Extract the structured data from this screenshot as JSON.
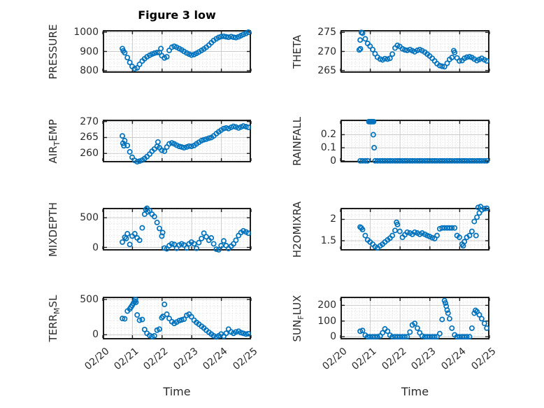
{
  "figure": {
    "title": "Figure 3 low",
    "xlabel": "Time",
    "marker_color": "#0072BD",
    "axis_color": "#1c1c1c",
    "major_grid_color": "#cbcbcb",
    "minor_grid_color": "#d9d9d9",
    "text_color": "#2b2b2b"
  },
  "chart_data": {
    "type": "scatter",
    "layout": "4x2-subplots",
    "title": "Figure 3 low",
    "xlabel": "Time",
    "marker": "open-circle",
    "marker_color": "#0072BD",
    "grid": "major-solid+minor-dotted",
    "x_range_days": [
      0,
      5
    ],
    "x_tick_days": [
      0,
      1,
      2,
      3,
      4,
      5
    ],
    "x_tick_labels": [
      "02/20",
      "02/21",
      "02/22",
      "02/23",
      "02/24",
      "02/25"
    ],
    "x_minor_per_day": 8,
    "t_days": [
      0.66,
      0.74,
      0.83,
      0.91,
      0.99,
      1.08,
      1.16,
      1.24,
      1.33,
      1.41,
      1.49,
      1.58,
      1.66,
      1.74,
      1.83,
      1.91,
      1.99,
      2.08,
      2.16,
      2.24,
      2.33,
      2.41,
      2.49,
      2.58,
      2.66,
      2.74,
      2.83,
      2.91,
      2.99,
      3.08,
      3.16,
      3.24,
      3.33,
      3.41,
      3.49,
      3.58,
      3.66,
      3.74,
      3.83,
      3.91,
      3.99,
      4.08,
      4.16,
      4.24,
      4.33,
      4.41,
      4.49,
      4.58,
      4.66,
      4.74,
      4.83,
      4.91
    ],
    "subplots": [
      {
        "id": "PRESSURE",
        "col": 0,
        "row": 0,
        "ylabel_parts": [
          [
            "PRESSURE",
            false
          ]
        ],
        "ylim": [
          789,
          1011
        ],
        "yticks": [
          800,
          900,
          1000
        ],
        "ytick_labels": [
          "800",
          "900",
          "1000"
        ],
        "y_minor_step": 20,
        "values": [
          915,
          893,
          868,
          843,
          822,
          810,
          815,
          833,
          850,
          862,
          872,
          880,
          886,
          891,
          894,
          895,
          878,
          866,
          872,
          905,
          922,
          927,
          922,
          915,
          908,
          900,
          892,
          886,
          881,
          884,
          890,
          897,
          905,
          913,
          922,
          933,
          945,
          957,
          966,
          973,
          977,
          979,
          976,
          974,
          977,
          974,
          972,
          976,
          982,
          988,
          994,
          1000
        ],
        "extra_points": [
          [
            0.69,
            903
          ],
          [
            1.96,
            915
          ]
        ]
      },
      {
        "id": "THETA",
        "col": 1,
        "row": 0,
        "ylabel_parts": [
          [
            "THETA",
            false
          ]
        ],
        "ylim": [
          264.4,
          275.6
        ],
        "yticks": [
          265,
          270,
          275
        ],
        "ytick_labels": [
          "265",
          "270",
          "275"
        ],
        "y_minor_step": 1,
        "values": [
          273.0,
          274.8,
          273.3,
          272.1,
          271.4,
          270.5,
          269.4,
          268.5,
          268.0,
          267.8,
          268.1,
          268.0,
          268.2,
          269.3,
          270.9,
          271.6,
          271.3,
          270.7,
          270.4,
          270.3,
          270.5,
          270.2,
          269.9,
          270.3,
          270.5,
          270.2,
          269.8,
          269.3,
          268.8,
          268.2,
          267.5,
          266.8,
          266.3,
          266.1,
          266.0,
          266.9,
          267.9,
          268.4,
          269.7,
          268.3,
          267.5,
          267.6,
          268.2,
          268.5,
          268.6,
          268.4,
          268.0,
          267.6,
          267.9,
          268.2,
          267.8,
          267.5
        ],
        "extra_points": [
          [
            0.63,
            270.4
          ],
          [
            0.67,
            270.7
          ],
          [
            0.7,
            275.0
          ],
          [
            3.8,
            270.2
          ]
        ]
      },
      {
        "id": "AIR_TEMP",
        "col": 0,
        "row": 1,
        "ylabel_parts": [
          [
            "AIR",
            false
          ],
          [
            "T",
            true
          ],
          [
            "EMP",
            false
          ]
        ],
        "ylim": [
          257.2,
          270.6
        ],
        "yticks": [
          260,
          265,
          270
        ],
        "ytick_labels": [
          "260",
          "265",
          "270"
        ],
        "y_minor_step": 1,
        "values": [
          265.5,
          264.0,
          262.5,
          260.5,
          258.8,
          257.8,
          257.4,
          257.6,
          257.9,
          258.4,
          259.0,
          259.8,
          260.7,
          261.4,
          262.2,
          261.8,
          261.0,
          260.7,
          262.0,
          263.0,
          263.3,
          263.0,
          262.6,
          262.2,
          262.0,
          261.8,
          262.0,
          262.3,
          262.2,
          262.5,
          263.0,
          263.5,
          264.0,
          264.3,
          264.5,
          264.8,
          265.0,
          265.5,
          266.2,
          266.8,
          267.3,
          267.8,
          268.0,
          267.8,
          268.2,
          268.5,
          268.3,
          268.0,
          268.3,
          268.6,
          268.4,
          268.2
        ],
        "extra_points": [
          [
            0.68,
            263.2
          ],
          [
            0.71,
            262.4
          ],
          [
            1.86,
            263.6
          ]
        ]
      },
      {
        "id": "RAINFALL",
        "col": 1,
        "row": 1,
        "ylabel_parts": [
          [
            "RAINFALL",
            false
          ]
        ],
        "ylim": [
          -0.012,
          0.315
        ],
        "yticks": [
          0,
          0.1,
          0.2
        ],
        "ytick_labels": [
          "0",
          "0.1",
          "0.2"
        ],
        "y_minor_step": 0.02,
        "values": [
          0,
          0,
          0,
          0,
          0.3,
          0.3,
          0,
          0,
          0,
          0,
          0,
          0,
          0,
          0,
          0,
          0,
          0,
          0,
          0,
          0,
          0,
          0,
          0,
          0,
          0,
          0,
          0,
          0,
          0,
          0,
          0,
          0,
          0,
          0,
          0,
          0,
          0,
          0,
          0,
          0,
          0,
          0,
          0,
          0,
          0,
          0,
          0,
          0,
          0,
          0,
          0,
          0
        ],
        "extra_points": [
          [
            0.95,
            0.3
          ],
          [
            1.02,
            0.3
          ],
          [
            1.05,
            0.3
          ],
          [
            1.11,
            0.3
          ],
          [
            1.1,
            0.2
          ],
          [
            1.13,
            0.1
          ]
        ]
      },
      {
        "id": "MIXDEPTH",
        "col": 0,
        "row": 2,
        "ylabel_parts": [
          [
            "MIXDEPTH",
            false
          ]
        ],
        "ylim": [
          -53,
          667
        ],
        "yticks": [
          0,
          500
        ],
        "ytick_labels": [
          "0",
          "500"
        ],
        "y_minor_step": 100,
        "values": [
          90,
          170,
          230,
          50,
          190,
          230,
          160,
          120,
          330,
          560,
          660,
          620,
          560,
          520,
          420,
          320,
          190,
          -10,
          -25,
          30,
          60,
          50,
          -15,
          40,
          60,
          40,
          -10,
          60,
          90,
          60,
          -15,
          80,
          150,
          240,
          180,
          120,
          160,
          60,
          -30,
          -40,
          30,
          110,
          30,
          -20,
          20,
          60,
          120,
          200,
          250,
          280,
          260,
          240
        ],
        "extra_points": [
          [
            0.79,
            150
          ],
          [
            1.45,
            640
          ],
          [
            1.52,
            600
          ],
          [
            2.02,
            250
          ]
        ]
      },
      {
        "id": "H2OMIXRA",
        "col": 1,
        "row": 2,
        "ylabel_parts": [
          [
            "H2OMIXRA",
            false
          ]
        ],
        "ylim": [
          1.27,
          2.27
        ],
        "yticks": [
          1.5,
          2
        ],
        "ytick_labels": [
          "1.5",
          "2"
        ],
        "y_minor_step": 0.1,
        "values": [
          1.82,
          1.76,
          1.62,
          1.52,
          1.47,
          1.42,
          1.36,
          1.33,
          1.38,
          1.42,
          1.47,
          1.52,
          1.56,
          1.62,
          1.74,
          1.88,
          1.72,
          1.58,
          1.64,
          1.7,
          1.68,
          1.65,
          1.7,
          1.68,
          1.65,
          1.68,
          1.65,
          1.62,
          1.6,
          1.57,
          1.55,
          1.62,
          1.78,
          1.8,
          1.8,
          1.8,
          1.8,
          1.8,
          1.8,
          1.62,
          1.58,
          1.42,
          1.48,
          1.58,
          1.62,
          1.72,
          1.95,
          2.05,
          2.15,
          2.22,
          2.25,
          2.26
        ],
        "extra_points": [
          [
            0.7,
            1.8
          ],
          [
            1.88,
            1.93
          ],
          [
            4.12,
            1.38
          ],
          [
            4.55,
            1.62
          ],
          [
            4.62,
            2.28
          ],
          [
            4.7,
            2.3
          ]
        ]
      },
      {
        "id": "TERR_MSL",
        "col": 0,
        "row": 3,
        "ylabel_parts": [
          [
            "TERR",
            false
          ],
          [
            "M",
            true
          ],
          [
            "SL",
            false
          ]
        ],
        "ylim": [
          -66,
          538
        ],
        "yticks": [
          0,
          500
        ],
        "ytick_labels": [
          "0",
          "500"
        ],
        "y_minor_step": 100,
        "values": [
          230,
          225,
          335,
          365,
          415,
          475,
          280,
          205,
          215,
          75,
          20,
          -10,
          -25,
          -15,
          65,
          80,
          240,
          430,
          290,
          230,
          185,
          160,
          180,
          200,
          210,
          220,
          275,
          290,
          255,
          205,
          175,
          150,
          120,
          95,
          65,
          35,
          10,
          -15,
          -30,
          -15,
          10,
          -20,
          20,
          80,
          40,
          20,
          40,
          50,
          30,
          20,
          10,
          15
        ],
        "extra_points": [
          [
            0.95,
            390
          ],
          [
            1.03,
            445
          ],
          [
            1.1,
            500
          ],
          [
            1.12,
            460
          ],
          [
            2.03,
            260
          ]
        ]
      },
      {
        "id": "SUN_FLUX",
        "col": 1,
        "row": 3,
        "ylabel_parts": [
          [
            "SUN",
            false
          ],
          [
            "F",
            true
          ],
          [
            "LUX",
            false
          ]
        ],
        "ylim": [
          -17,
          255
        ],
        "yticks": [
          0,
          100,
          200
        ],
        "ytick_labels": [
          "0",
          "100",
          "200"
        ],
        "y_minor_step": 20,
        "values": [
          35,
          40,
          10,
          0,
          0,
          0,
          0,
          0,
          5,
          25,
          50,
          35,
          10,
          0,
          0,
          0,
          0,
          0,
          0,
          0,
          30,
          75,
          85,
          55,
          25,
          5,
          0,
          0,
          0,
          0,
          0,
          0,
          20,
          110,
          230,
          170,
          115,
          55,
          12,
          0,
          0,
          0,
          0,
          0,
          0,
          55,
          150,
          160,
          140,
          115,
          85,
          55
        ],
        "extra_points": [
          [
            3.52,
            215
          ],
          [
            3.55,
            195
          ],
          [
            3.61,
            150
          ],
          [
            4.53,
            168
          ]
        ]
      }
    ]
  }
}
